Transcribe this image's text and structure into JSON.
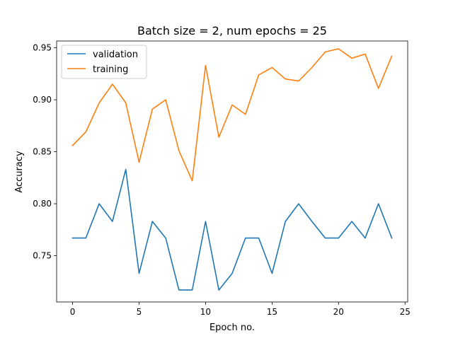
{
  "chart_data": {
    "type": "line",
    "title": "Batch size = 2, num epochs = 25",
    "xlabel": "Epoch no.",
    "ylabel": "Accuracy",
    "xlim": [
      -1.2,
      25.2
    ],
    "ylim": [
      0.7055,
      0.9565
    ],
    "xticks": [
      0,
      5,
      10,
      15,
      20,
      25
    ],
    "xtick_labels": [
      "0",
      "5",
      "10",
      "15",
      "20",
      "25"
    ],
    "yticks": [
      0.75,
      0.8,
      0.85,
      0.9,
      0.95
    ],
    "ytick_labels": [
      "0.75",
      "0.80",
      "0.85",
      "0.90",
      "0.95"
    ],
    "grid": false,
    "legend_position": "top-left",
    "x": [
      0,
      1,
      2,
      3,
      4,
      5,
      6,
      7,
      8,
      9,
      10,
      11,
      12,
      13,
      14,
      15,
      16,
      17,
      18,
      19,
      20,
      21,
      22,
      23,
      24
    ],
    "series": [
      {
        "name": "validation",
        "color": "#1f77b4",
        "values": [
          0.767,
          0.767,
          0.8,
          0.783,
          0.833,
          0.733,
          0.783,
          0.767,
          0.717,
          0.717,
          0.783,
          0.717,
          0.733,
          0.767,
          0.767,
          0.733,
          0.783,
          0.8,
          0.783,
          0.767,
          0.767,
          0.783,
          0.767,
          0.8,
          0.767
        ]
      },
      {
        "name": "training",
        "color": "#ff7f0e",
        "values": [
          0.856,
          0.869,
          0.897,
          0.915,
          0.897,
          0.84,
          0.891,
          0.9,
          0.851,
          0.822,
          0.933,
          0.864,
          0.895,
          0.886,
          0.924,
          0.931,
          0.92,
          0.918,
          0.931,
          0.946,
          0.949,
          0.94,
          0.944,
          0.911,
          0.942
        ]
      }
    ]
  }
}
